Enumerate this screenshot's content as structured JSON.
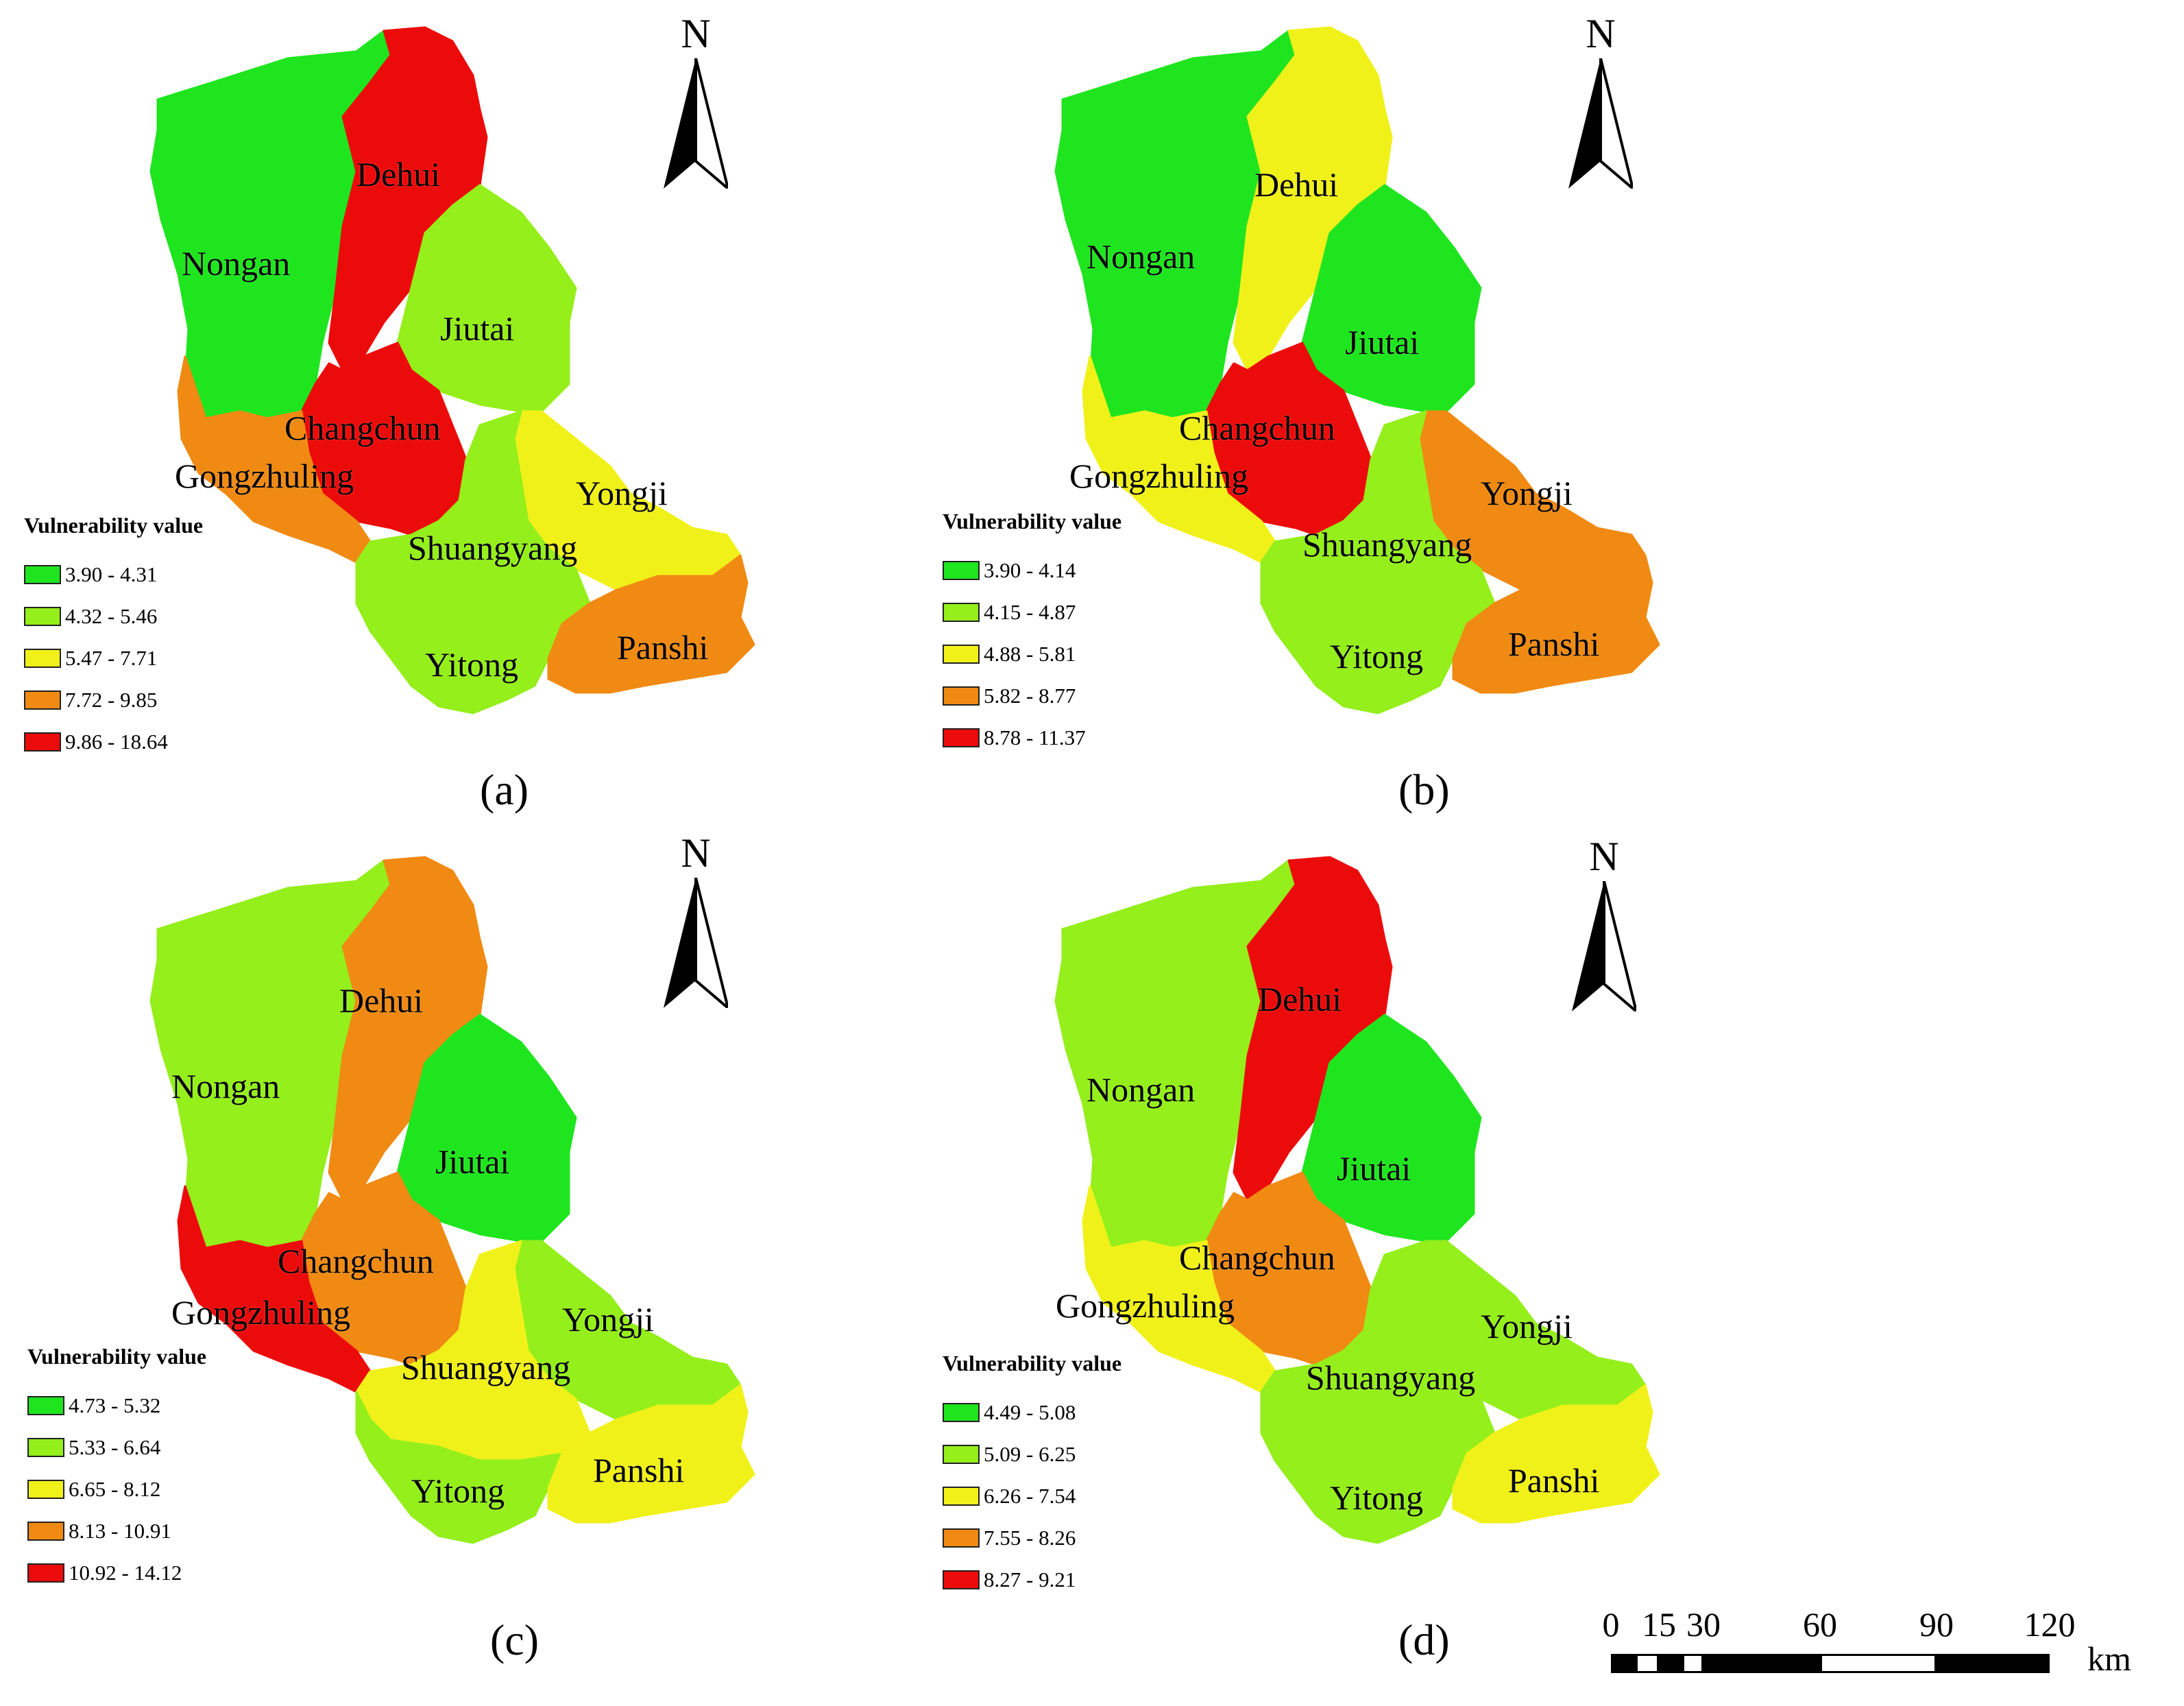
{
  "north_label": "N",
  "legend_title": "Vulnerability value",
  "colors": {
    "class1": "#1fe51f",
    "class2": "#94ef1a",
    "class3": "#f1f11a",
    "class4": "#f08a12",
    "class5": "#ec0b0b"
  },
  "counties": {
    "dehui": "Dehui",
    "nongan": "Nongan",
    "jiutai": "Jiutai",
    "changchun": "Changchun",
    "gongzhuling": "Gongzhuling",
    "yongji": "Yongji",
    "shuangyang": "Shuangyang",
    "yitong": "Yitong",
    "panshi": "Panshi"
  },
  "panels": [
    {
      "caption": "(a)",
      "legend": [
        "3.90 - 4.31",
        "4.32 - 5.46",
        "5.47 - 7.71",
        "7.72 - 9.85",
        "9.86 - 18.64"
      ],
      "classes": {
        "nongan": 1,
        "dehui": 5,
        "jiutai": 2,
        "changchun": 5,
        "gongzhuling": 4,
        "yongji": 3,
        "shuangyang": 2,
        "yitong": 2,
        "panshi": 4
      }
    },
    {
      "caption": "(b)",
      "legend": [
        "3.90 - 4.14",
        "4.15 - 4.87",
        "4.88 - 5.81",
        "5.82 - 8.77",
        "8.78 - 11.37"
      ],
      "classes": {
        "nongan": 1,
        "dehui": 3,
        "jiutai": 1,
        "changchun": 5,
        "gongzhuling": 3,
        "yongji": 4,
        "shuangyang": 2,
        "yitong": 2,
        "panshi": 4
      }
    },
    {
      "caption": "(c)",
      "legend": [
        "4.73 - 5.32",
        "5.33 - 6.64",
        "6.65 - 8.12",
        "8.13 - 10.91",
        "10.92 - 14.12"
      ],
      "classes": {
        "nongan": 2,
        "dehui": 4,
        "jiutai": 1,
        "changchun": 4,
        "gongzhuling": 5,
        "yongji": 2,
        "shuangyang": 3,
        "yitong": 2,
        "panshi": 3
      }
    },
    {
      "caption": "(d)",
      "legend": [
        "4.49 - 5.08",
        "5.09 - 6.25",
        "6.26 - 7.54",
        "7.55 - 8.26",
        "8.27 - 9.21"
      ],
      "classes": {
        "nongan": 2,
        "dehui": 5,
        "jiutai": 1,
        "changchun": 4,
        "gongzhuling": 3,
        "yongji": 2,
        "shuangyang": 2,
        "yitong": 2,
        "panshi": 3
      }
    }
  ],
  "scalebar": {
    "ticks": [
      "0",
      "15",
      "30",
      "60",
      "90",
      "120"
    ],
    "unit": "km"
  }
}
